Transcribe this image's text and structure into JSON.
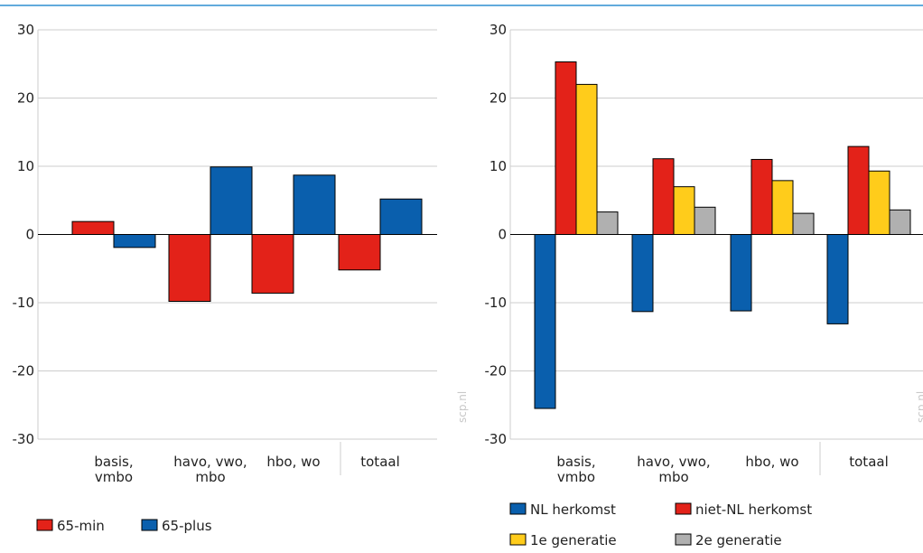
{
  "watermark": "scp.nl",
  "colors": {
    "topline": "#2f8fd0",
    "grid": "#cccccc",
    "axis": "#000000",
    "text": "#222222",
    "watermark": "#c8c8c8",
    "red": "#e32219",
    "blue": "#0a5fad",
    "yellow": "#ffcc1b",
    "gray": "#b0b0b0"
  },
  "chart_data": [
    {
      "type": "bar",
      "title": "",
      "xlabel": "",
      "ylabel": "",
      "ylim": [
        -30,
        30
      ],
      "yticks": [
        30,
        20,
        10,
        0,
        -10,
        -20,
        -30
      ],
      "grid": true,
      "legend_position": "bottom-left",
      "categories": [
        [
          "basis,",
          "vmbo"
        ],
        [
          "havo, vwo,",
          "mbo"
        ],
        [
          "hbo, wo"
        ],
        [
          "totaal"
        ]
      ],
      "series": [
        {
          "name": "65-min",
          "color": "#e32219",
          "values": [
            1.9,
            -9.8,
            -8.6,
            -5.2
          ]
        },
        {
          "name": "65-plus",
          "color": "#0a5fad",
          "values": [
            -1.9,
            9.9,
            8.7,
            5.2
          ]
        }
      ]
    },
    {
      "type": "bar",
      "title": "",
      "xlabel": "",
      "ylabel": "",
      "ylim": [
        -30,
        30
      ],
      "yticks": [
        30,
        20,
        10,
        0,
        -10,
        -20,
        -30
      ],
      "grid": true,
      "legend_position": "bottom-left",
      "categories": [
        [
          "basis,",
          "vmbo"
        ],
        [
          "havo, vwo,",
          "mbo"
        ],
        [
          "hbo, wo"
        ],
        [
          "totaal"
        ]
      ],
      "series": [
        {
          "name": "NL herkomst",
          "color": "#0a5fad",
          "values": [
            -25.5,
            -11.3,
            -11.2,
            -13.1
          ]
        },
        {
          "name": "niet-NL herkomst",
          "color": "#e32219",
          "values": [
            25.3,
            11.1,
            11.0,
            12.9
          ]
        },
        {
          "name": "1e generatie",
          "color": "#ffcc1b",
          "values": [
            22.0,
            7.0,
            7.9,
            9.3
          ]
        },
        {
          "name": "2e generatie",
          "color": "#b0b0b0",
          "values": [
            3.3,
            4.0,
            3.1,
            3.6
          ]
        }
      ]
    }
  ]
}
